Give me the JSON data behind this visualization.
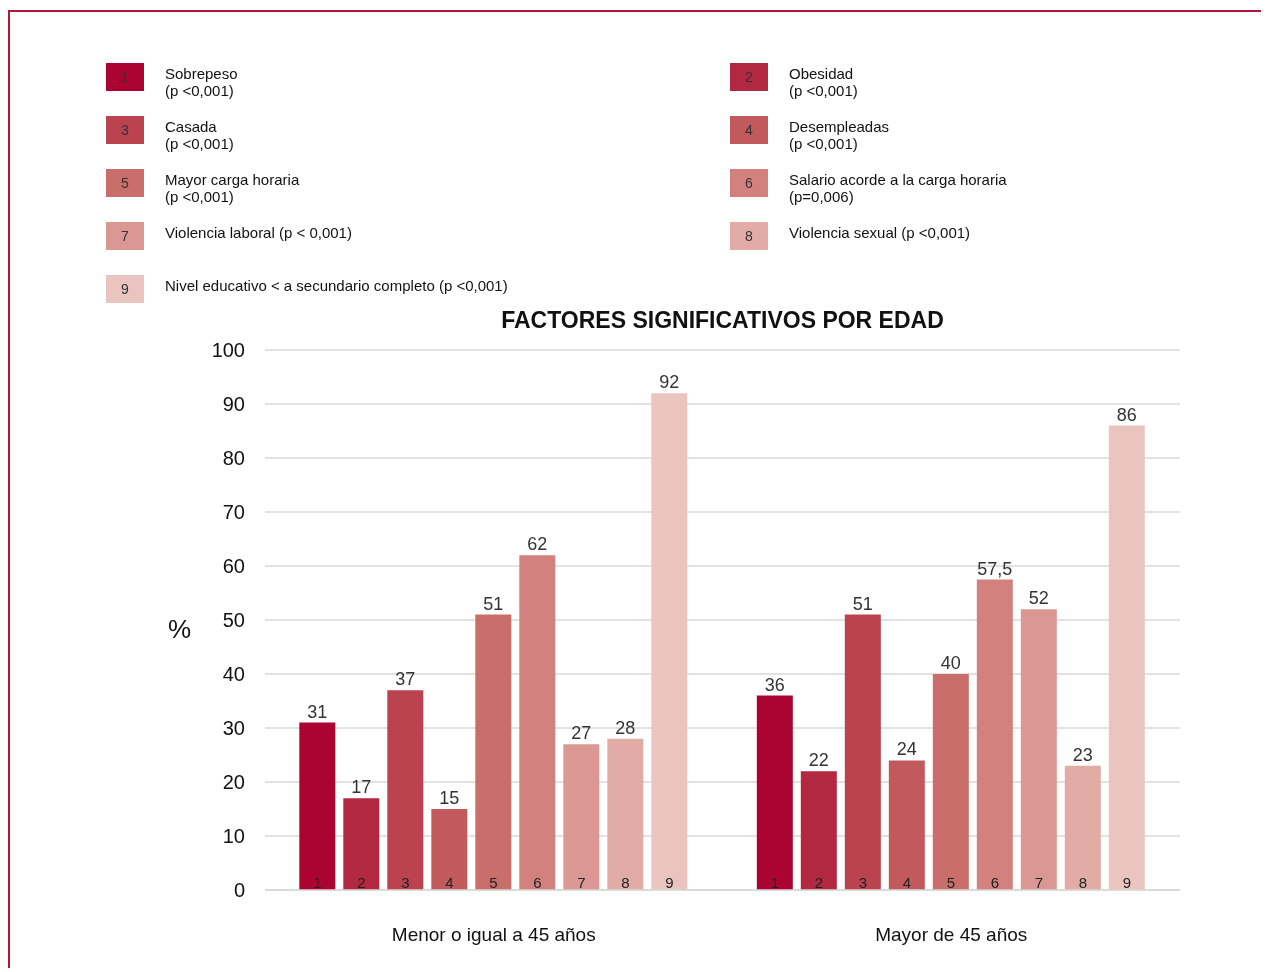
{
  "chart_data": {
    "type": "bar",
    "title": "FACTORES SIGNIFICATIVOS POR EDAD",
    "ylabel": "%",
    "categories": [
      "Menor o igual a 45 años",
      "Mayor de 45 años"
    ],
    "series": [
      {
        "name": "Sobrepeso\n(p <0,001)",
        "color": "#ab0433",
        "values": [
          31,
          36
        ],
        "value_labels": [
          "31",
          "36"
        ]
      },
      {
        "name": "Obesidad\n(p <0,001)",
        "color": "#b22840",
        "values": [
          17,
          22
        ],
        "value_labels": [
          "17",
          "22"
        ]
      },
      {
        "name": "Casada\n(p <0,001)",
        "color": "#bb434f",
        "values": [
          37,
          51
        ],
        "value_labels": [
          "37",
          "51"
        ]
      },
      {
        "name": "Desempleadas\n(p <0,001)",
        "color": "#c25a5d",
        "values": [
          15,
          24
        ],
        "value_labels": [
          "15",
          "24"
        ]
      },
      {
        "name": "Mayor carga horaria\n(p <0,001)",
        "color": "#c96e6b",
        "values": [
          51,
          40
        ],
        "value_labels": [
          "51",
          "40"
        ]
      },
      {
        "name": "Salario acorde a la carga horaria\n(p=0,006)",
        "color": "#d3817f",
        "values": [
          62,
          57.5
        ],
        "value_labels": [
          "62",
          "57,5"
        ]
      },
      {
        "name": "Violencia laboral  (p < 0,001)",
        "color": "#da9793",
        "values": [
          27,
          52
        ],
        "value_labels": [
          "27",
          "52"
        ]
      },
      {
        "name": "Violencia sexual (p <0,001)",
        "color": "#e2aca6",
        "values": [
          28,
          23
        ],
        "value_labels": [
          "28",
          "23"
        ]
      },
      {
        "name": "Nivel educativo < a secundario completo (p <0,001)",
        "color": "#eac5c0",
        "values": [
          92,
          86
        ],
        "value_labels": [
          "92",
          "86"
        ]
      }
    ],
    "annotations": [
      "1",
      "2",
      "3",
      "4",
      "5",
      "6",
      "7",
      "8",
      "9"
    ],
    "ylim": [
      0,
      100
    ],
    "yticks": [
      0,
      10,
      20,
      30,
      40,
      50,
      60,
      70,
      80,
      90,
      100
    ],
    "grid": "y",
    "legend": "top"
  }
}
